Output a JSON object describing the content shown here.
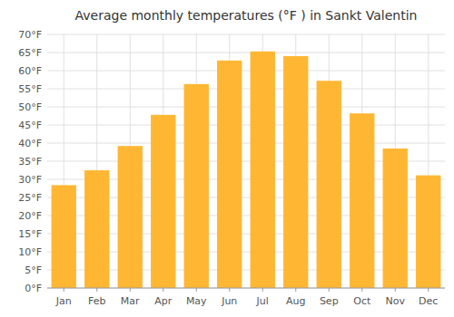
{
  "chart_data": {
    "type": "bar",
    "title": "Average monthly temperatures (°F ) in Sankt Valentin",
    "categories": [
      "Jan",
      "Feb",
      "Mar",
      "Apr",
      "May",
      "Jun",
      "Jul",
      "Aug",
      "Sep",
      "Oct",
      "Nov",
      "Dec"
    ],
    "values": [
      28.4,
      32.5,
      39.2,
      47.8,
      56.3,
      62.8,
      65.3,
      64.0,
      57.2,
      48.2,
      38.5,
      31.1
    ],
    "color": "#FFB733",
    "ylim": [
      0,
      70
    ],
    "yticks": [
      {
        "value": 0,
        "label": "0°F"
      },
      {
        "value": 5,
        "label": "5°F"
      },
      {
        "value": 10,
        "label": "10°F"
      },
      {
        "value": 15,
        "label": "15°F"
      },
      {
        "value": 20,
        "label": "20°F"
      },
      {
        "value": 25,
        "label": "25°F"
      },
      {
        "value": 30,
        "label": "30°F"
      },
      {
        "value": 35,
        "label": "35°F"
      },
      {
        "value": 40,
        "label": "40°F"
      },
      {
        "value": 45,
        "label": "45°F"
      },
      {
        "value": 50,
        "label": "50°F"
      },
      {
        "value": 55,
        "label": "55°F"
      },
      {
        "value": 60,
        "label": "60°F"
      },
      {
        "value": 65,
        "label": "65°F"
      },
      {
        "value": 70,
        "label": "70°F"
      }
    ],
    "grid": true
  }
}
